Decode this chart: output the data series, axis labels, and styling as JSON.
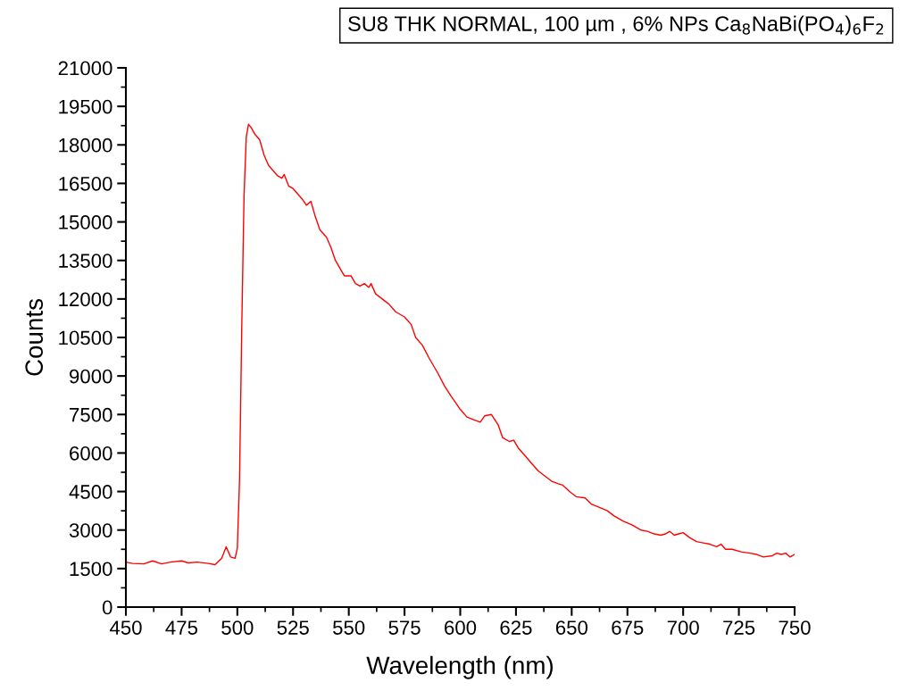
{
  "chart_data": {
    "type": "line",
    "title": "SU8 THK NORMAL, 100 µm , 6% NPs Ca$_{8}$NaBi(PO$_{4}$)$_{6}$F$_{2}$",
    "xlabel": "Wavelength (nm)",
    "ylabel": "Counts",
    "xlim": [
      450,
      750
    ],
    "xticks": [
      450,
      475,
      500,
      525,
      550,
      575,
      600,
      625,
      650,
      675,
      700,
      725,
      750
    ],
    "ylim": [
      0,
      21000
    ],
    "yticks": [
      0,
      1500,
      3000,
      4500,
      6000,
      7500,
      9000,
      10500,
      12000,
      13500,
      15000,
      16500,
      18000,
      19500,
      21000
    ],
    "grid": false,
    "legend": false,
    "marker": "none",
    "line_style": "solid",
    "series": [
      {
        "color": "#ff0000",
        "x": [
          450,
          453,
          458,
          462,
          466,
          470,
          475,
          478,
          482,
          487,
          490,
          493,
          495,
          497,
          499,
          500,
          501,
          502,
          503,
          504,
          505,
          506,
          508,
          510,
          512,
          514,
          516,
          518,
          520,
          521,
          523,
          525,
          527,
          529,
          531,
          533,
          535,
          537,
          540,
          542,
          544,
          546,
          548,
          551,
          553,
          555,
          557,
          559,
          560,
          562,
          565,
          568,
          571,
          575,
          578,
          580,
          583,
          586,
          590,
          593,
          596,
          600,
          603,
          606,
          609,
          611,
          614,
          617,
          619,
          622,
          624,
          626,
          629,
          632,
          635,
          638,
          641,
          644,
          646,
          649,
          652,
          656,
          659,
          662,
          666,
          669,
          673,
          677,
          681,
          684,
          687,
          690,
          692,
          694,
          696,
          698,
          700,
          703,
          706,
          709,
          712,
          715,
          717,
          719,
          722,
          726,
          730,
          733,
          736,
          740,
          742,
          744,
          746,
          748,
          750
        ],
        "values": [
          1750,
          1700,
          1680,
          1800,
          1680,
          1750,
          1800,
          1720,
          1750,
          1700,
          1650,
          1900,
          2350,
          1950,
          1900,
          2300,
          5000,
          11000,
          16000,
          18300,
          18800,
          18700,
          18400,
          18200,
          17600,
          17200,
          17000,
          16800,
          16700,
          16850,
          16400,
          16300,
          16100,
          15900,
          15650,
          15800,
          15200,
          14700,
          14400,
          14000,
          13500,
          13200,
          12900,
          12900,
          12600,
          12500,
          12600,
          12450,
          12600,
          12200,
          12000,
          11800,
          11500,
          11300,
          11000,
          10500,
          10200,
          9700,
          9100,
          8600,
          8200,
          7700,
          7400,
          7300,
          7200,
          7450,
          7500,
          7100,
          6600,
          6450,
          6500,
          6200,
          5900,
          5600,
          5300,
          5100,
          4900,
          4800,
          4750,
          4500,
          4300,
          4250,
          4000,
          3900,
          3750,
          3550,
          3350,
          3200,
          3000,
          2950,
          2850,
          2800,
          2850,
          2950,
          2800,
          2850,
          2900,
          2700,
          2550,
          2500,
          2450,
          2350,
          2450,
          2250,
          2250,
          2150,
          2100,
          2050,
          1950,
          2000,
          2100,
          2050,
          2100,
          1950,
          2050
        ]
      }
    ]
  }
}
